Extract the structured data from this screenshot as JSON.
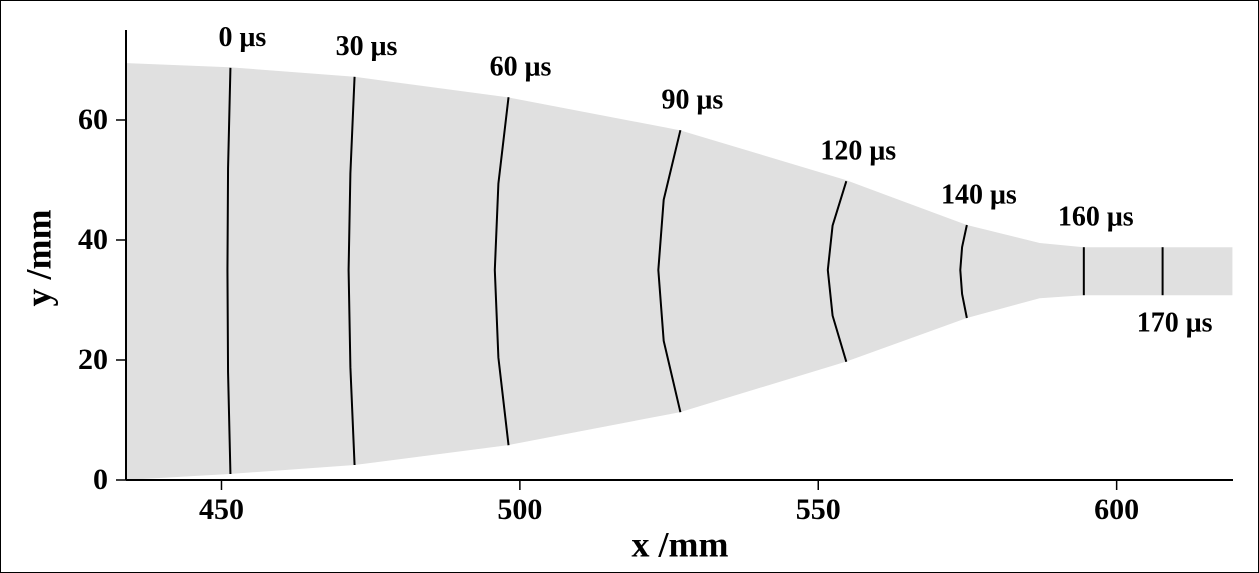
{
  "chart_data": {
    "type": "area",
    "xlabel": "x /mm",
    "ylabel": "y /mm",
    "xlim": [
      434,
      620
    ],
    "ylim": [
      0,
      75
    ],
    "xticks": [
      450,
      500,
      550,
      600
    ],
    "yticks": [
      0,
      20,
      40,
      60
    ],
    "fill": "#e0e0e0",
    "line_color": "#000000",
    "walls": {
      "x": [
        433.9,
        451.3,
        472.3,
        497.9,
        526.8,
        554.6,
        574.9,
        587.1,
        594.5,
        619.4
      ],
      "upper": [
        69.5,
        68.8,
        67.2,
        63.8,
        58.3,
        50,
        42.5,
        39.5,
        38.8,
        38.8
      ],
      "lower": [
        0,
        1,
        2.5,
        5.8,
        11.3,
        19.7,
        27,
        30.3,
        30.8,
        30.8
      ]
    },
    "fronts": [
      {
        "label": "0 μs",
        "x": [
          451.5,
          451.1,
          451.0,
          451.1,
          451.5
        ],
        "y": [
          68.7,
          51.9,
          35,
          18,
          1
        ]
      },
      {
        "label": "30 μs",
        "x": [
          472.3,
          471.6,
          471.3,
          471.6,
          472.3
        ],
        "y": [
          67.2,
          51.1,
          35,
          18.8,
          2.5
        ]
      },
      {
        "label": "60 μs",
        "x": [
          498.1,
          496.4,
          495.8,
          496.4,
          498.1
        ],
        "y": [
          63.8,
          49.4,
          35,
          20.4,
          5.8
        ]
      },
      {
        "label": "90 μs",
        "x": [
          526.9,
          524.1,
          523.2,
          524.1,
          526.9
        ],
        "y": [
          58.3,
          46.7,
          35,
          23.2,
          11.3
        ]
      },
      {
        "label": "120 μs",
        "x": [
          554.7,
          552.4,
          551.6,
          552.4,
          554.7
        ],
        "y": [
          49.8,
          42.4,
          35,
          27.4,
          19.7
        ]
      },
      {
        "label": "140 μs",
        "x": [
          574.9,
          574.1,
          573.8,
          574.1,
          574.9
        ],
        "y": [
          42.5,
          38.8,
          35,
          31,
          27
        ]
      },
      {
        "label": "160 μs",
        "x": [
          594.5,
          594.5,
          594.5
        ],
        "y": [
          38.8,
          35,
          30.8
        ]
      },
      {
        "label": "170 μs",
        "x": [
          607.7,
          607.7,
          607.7
        ],
        "y": [
          38.8,
          35,
          30.8
        ]
      }
    ]
  }
}
